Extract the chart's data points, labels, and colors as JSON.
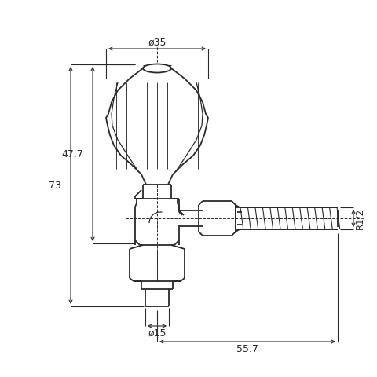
{
  "background_color": "#ffffff",
  "line_color": "#2a2a2a",
  "dim_color": "#2a2a2a",
  "line_width": 1.3,
  "thin_lw": 0.7,
  "dim_lw": 0.8,
  "figsize": [
    4.8,
    4.8
  ],
  "dpi": 100,
  "dim_35_label": "ø35",
  "dim_15_label": "ø15",
  "dim_477_label": "47.7",
  "dim_73_label": "73",
  "dim_557_label": "55.7",
  "dim_r12_label": "R1/2"
}
